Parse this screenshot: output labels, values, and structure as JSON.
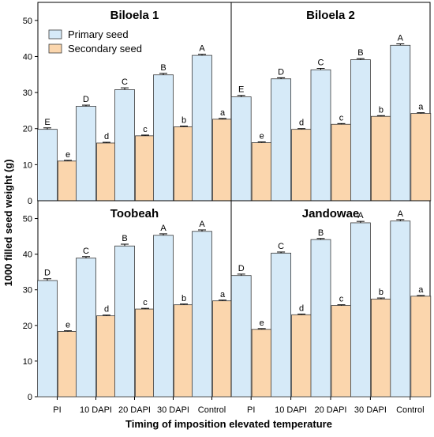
{
  "chart_data": {
    "type": "bar",
    "ylabel": "1000 filled seed weight (g)",
    "xlabel": "Timing of imposition elevated temperature",
    "categories": [
      "PI",
      "10 DAPI",
      "20 DAPI",
      "30 DAPI",
      "Control"
    ],
    "ylim": [
      0,
      55
    ],
    "yticks": [
      0,
      10,
      20,
      30,
      40,
      50
    ],
    "legend": {
      "placement": "top-left",
      "entries": [
        "Primary seed",
        "Secondary seed"
      ]
    },
    "colors": {
      "primary": "#d6eaf8",
      "secondary": "#fbd6ad",
      "stroke": "#3a3a3a"
    },
    "panels": [
      {
        "title": "Biloela 1",
        "series": [
          {
            "name": "Primary seed",
            "values": [
              19.8,
              26.2,
              30.8,
              34.9,
              40.3
            ],
            "errors": [
              0.4,
              0.3,
              0.5,
              0.4,
              0.3
            ],
            "letters": [
              "E",
              "D",
              "C",
              "B",
              "A"
            ]
          },
          {
            "name": "Secondary seed",
            "values": [
              11.0,
              16.0,
              18.0,
              20.5,
              22.6
            ],
            "errors": [
              0.2,
              0.2,
              0.2,
              0.2,
              0.2
            ],
            "letters": [
              "e",
              "d",
              "c",
              "b",
              "a"
            ]
          }
        ]
      },
      {
        "title": "Biloela 2",
        "series": [
          {
            "name": "Primary seed",
            "values": [
              28.8,
              33.8,
              36.3,
              39.1,
              43.1
            ],
            "errors": [
              0.4,
              0.3,
              0.4,
              0.3,
              0.4
            ],
            "letters": [
              "E",
              "D",
              "C",
              "B",
              "A"
            ]
          },
          {
            "name": "Secondary seed",
            "values": [
              16.1,
              19.8,
              21.2,
              23.4,
              24.2
            ],
            "errors": [
              0.2,
              0.2,
              0.2,
              0.2,
              0.2
            ],
            "letters": [
              "e",
              "d",
              "c",
              "b",
              "a"
            ]
          }
        ]
      },
      {
        "title": "Toobeah",
        "series": [
          {
            "name": "Primary seed",
            "values": [
              32.6,
              38.9,
              42.3,
              45.3,
              46.4
            ],
            "errors": [
              0.5,
              0.4,
              0.5,
              0.4,
              0.4
            ],
            "letters": [
              "D",
              "C",
              "B",
              "A",
              "A"
            ]
          },
          {
            "name": "Secondary seed",
            "values": [
              18.3,
              22.7,
              24.6,
              25.8,
              26.9
            ],
            "errors": [
              0.2,
              0.2,
              0.2,
              0.2,
              0.2
            ],
            "letters": [
              "e",
              "d",
              "c",
              "b",
              "a"
            ]
          }
        ]
      },
      {
        "title": "Jandowae",
        "series": [
          {
            "name": "Primary seed",
            "values": [
              34.0,
              40.3,
              44.1,
              48.8,
              49.3
            ],
            "errors": [
              0.4,
              0.3,
              0.3,
              0.4,
              0.4
            ],
            "letters": [
              "D",
              "C",
              "B",
              "A",
              "A"
            ]
          },
          {
            "name": "Secondary seed",
            "values": [
              18.9,
              23.0,
              25.6,
              27.4,
              28.2
            ],
            "errors": [
              0.2,
              0.2,
              0.2,
              0.3,
              0.2
            ],
            "letters": [
              "e",
              "d",
              "c",
              "b",
              "a"
            ]
          }
        ]
      }
    ]
  }
}
